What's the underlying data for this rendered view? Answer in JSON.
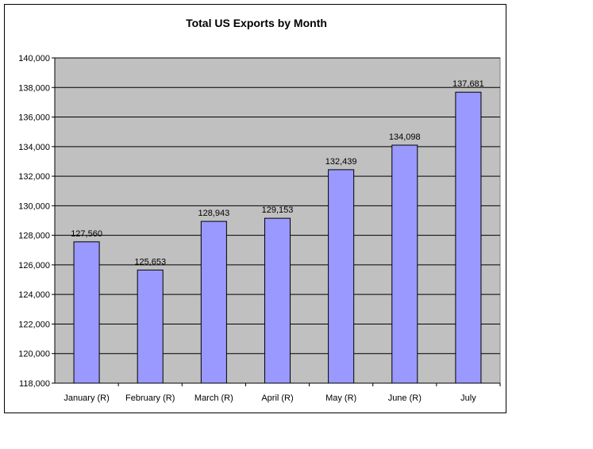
{
  "chart_data": {
    "type": "bar",
    "title": "Total US Exports by Month",
    "xlabel": "",
    "ylabel": "",
    "categories": [
      "January  (R)",
      "February  (R)",
      "March  (R)",
      "April  (R)",
      "May  (R)",
      "June  (R)",
      "July"
    ],
    "values": [
      127560,
      125653,
      128943,
      129153,
      132439,
      134098,
      137681
    ],
    "data_labels": [
      "127,560",
      "125,653",
      "128,943",
      "129,153",
      "132,439",
      "134,098",
      "137,681"
    ],
    "ylim": [
      118000,
      140000
    ],
    "yticks": [
      118000,
      120000,
      122000,
      124000,
      126000,
      128000,
      130000,
      132000,
      134000,
      136000,
      138000,
      140000
    ],
    "ytick_labels": [
      "118,000",
      "120,000",
      "122,000",
      "124,000",
      "126,000",
      "128,000",
      "130,000",
      "132,000",
      "134,000",
      "136,000",
      "138,000",
      "140,000"
    ],
    "grid": true,
    "legend": "none",
    "colors": {
      "bar_fill": "#9999FF",
      "bar_stroke": "#000000",
      "plot_bg": "#C0C0C0",
      "gridline": "#000000"
    }
  }
}
